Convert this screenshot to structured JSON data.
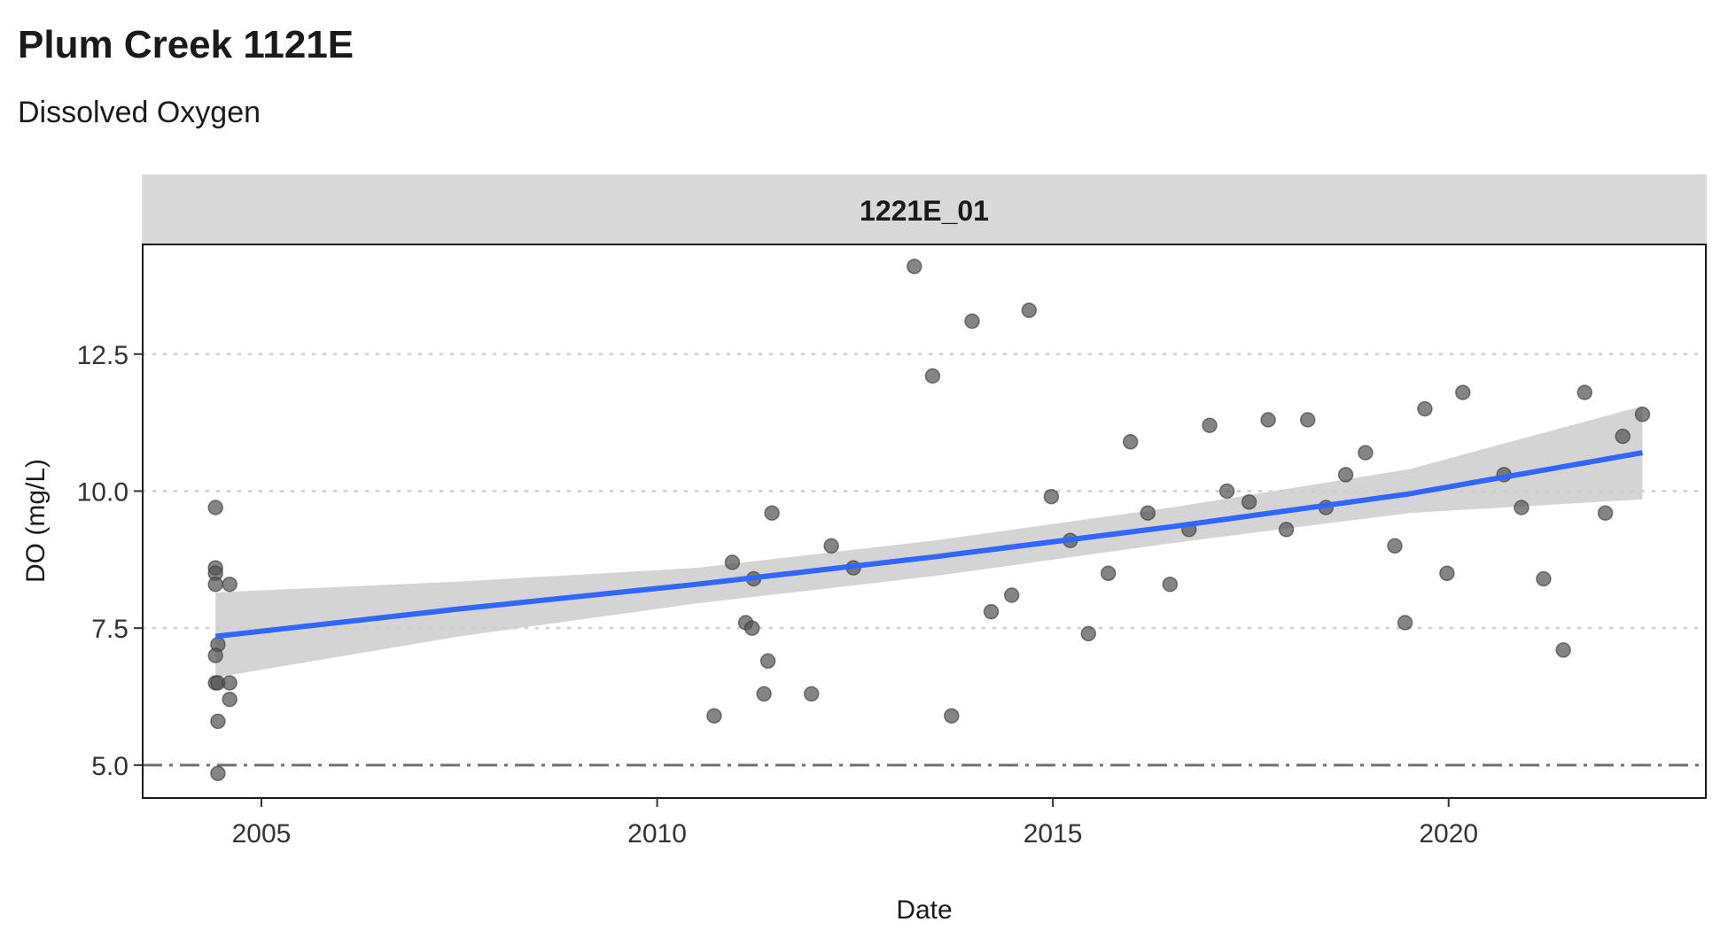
{
  "title": "Plum Creek 1121E",
  "subtitle": "Dissolved Oxygen",
  "chart_data": {
    "type": "scatter",
    "facet_label": "1221E_01",
    "xlabel": "Date",
    "ylabel": "DO (mg/L)",
    "xlim": [
      2003.5,
      2023.25
    ],
    "ylim": [
      4.4,
      14.5
    ],
    "x_ticks": [
      2005,
      2010,
      2015,
      2020
    ],
    "y_ticks": [
      5.0,
      7.5,
      10.0,
      12.5
    ],
    "y_tick_labels": [
      "5.0",
      "7.5",
      "10.0",
      "12.5"
    ],
    "grid": {
      "major_y": true,
      "style": "dotted"
    },
    "reference_line": {
      "y": 5.0,
      "style": "dashdot"
    },
    "colors": {
      "points": "#555555",
      "trend": "#3366ff",
      "ribbon": "#cccccc",
      "strip": "#d9d9d9",
      "gridline": "#d4d4d4",
      "reference": "#707070"
    },
    "points": [
      {
        "x": 2004.42,
        "y": 9.7
      },
      {
        "x": 2004.42,
        "y": 8.6
      },
      {
        "x": 2004.42,
        "y": 8.5
      },
      {
        "x": 2004.42,
        "y": 8.3
      },
      {
        "x": 2004.45,
        "y": 7.2
      },
      {
        "x": 2004.42,
        "y": 7.0
      },
      {
        "x": 2004.42,
        "y": 6.5
      },
      {
        "x": 2004.45,
        "y": 6.5
      },
      {
        "x": 2004.45,
        "y": 5.8
      },
      {
        "x": 2004.45,
        "y": 4.85
      },
      {
        "x": 2004.6,
        "y": 8.3
      },
      {
        "x": 2004.6,
        "y": 6.5
      },
      {
        "x": 2004.6,
        "y": 6.2
      },
      {
        "x": 2010.72,
        "y": 5.9
      },
      {
        "x": 2010.95,
        "y": 8.7
      },
      {
        "x": 2011.12,
        "y": 7.6
      },
      {
        "x": 2011.2,
        "y": 7.5
      },
      {
        "x": 2011.22,
        "y": 8.4
      },
      {
        "x": 2011.35,
        "y": 6.3
      },
      {
        "x": 2011.4,
        "y": 6.9
      },
      {
        "x": 2011.45,
        "y": 9.6
      },
      {
        "x": 2011.95,
        "y": 6.3
      },
      {
        "x": 2012.2,
        "y": 9.0
      },
      {
        "x": 2012.48,
        "y": 8.6
      },
      {
        "x": 2013.25,
        "y": 14.1
      },
      {
        "x": 2013.48,
        "y": 12.1
      },
      {
        "x": 2013.72,
        "y": 5.9
      },
      {
        "x": 2013.98,
        "y": 13.1
      },
      {
        "x": 2014.22,
        "y": 7.8
      },
      {
        "x": 2014.48,
        "y": 8.1
      },
      {
        "x": 2014.7,
        "y": 13.3
      },
      {
        "x": 2014.98,
        "y": 9.9
      },
      {
        "x": 2015.22,
        "y": 9.1
      },
      {
        "x": 2015.45,
        "y": 7.4
      },
      {
        "x": 2015.7,
        "y": 8.5
      },
      {
        "x": 2015.98,
        "y": 10.9
      },
      {
        "x": 2016.2,
        "y": 9.6
      },
      {
        "x": 2016.48,
        "y": 8.3
      },
      {
        "x": 2016.72,
        "y": 9.3
      },
      {
        "x": 2016.98,
        "y": 11.2
      },
      {
        "x": 2017.2,
        "y": 10.0
      },
      {
        "x": 2017.48,
        "y": 9.8
      },
      {
        "x": 2017.72,
        "y": 11.3
      },
      {
        "x": 2017.95,
        "y": 9.3
      },
      {
        "x": 2018.22,
        "y": 11.3
      },
      {
        "x": 2018.45,
        "y": 9.7
      },
      {
        "x": 2018.7,
        "y": 10.3
      },
      {
        "x": 2018.95,
        "y": 10.7
      },
      {
        "x": 2019.32,
        "y": 9.0
      },
      {
        "x": 2019.45,
        "y": 7.6
      },
      {
        "x": 2019.7,
        "y": 11.5
      },
      {
        "x": 2019.98,
        "y": 8.5
      },
      {
        "x": 2020.18,
        "y": 11.8
      },
      {
        "x": 2020.7,
        "y": 10.3
      },
      {
        "x": 2020.92,
        "y": 9.7
      },
      {
        "x": 2021.2,
        "y": 8.4
      },
      {
        "x": 2021.45,
        "y": 7.1
      },
      {
        "x": 2021.72,
        "y": 11.8
      },
      {
        "x": 2021.98,
        "y": 9.6
      },
      {
        "x": 2022.2,
        "y": 11.0
      },
      {
        "x": 2022.45,
        "y": 11.4
      }
    ],
    "trend": {
      "x": [
        2004.42,
        2007.5,
        2010.5,
        2013.5,
        2016.5,
        2019.5,
        2022.45
      ],
      "y": [
        7.35,
        7.85,
        8.3,
        8.8,
        9.35,
        9.95,
        10.7
      ],
      "lower": [
        6.6,
        7.35,
        7.95,
        8.45,
        9.05,
        9.6,
        9.85
      ],
      "upper": [
        8.15,
        8.35,
        8.6,
        9.1,
        9.7,
        10.4,
        11.55
      ]
    }
  }
}
